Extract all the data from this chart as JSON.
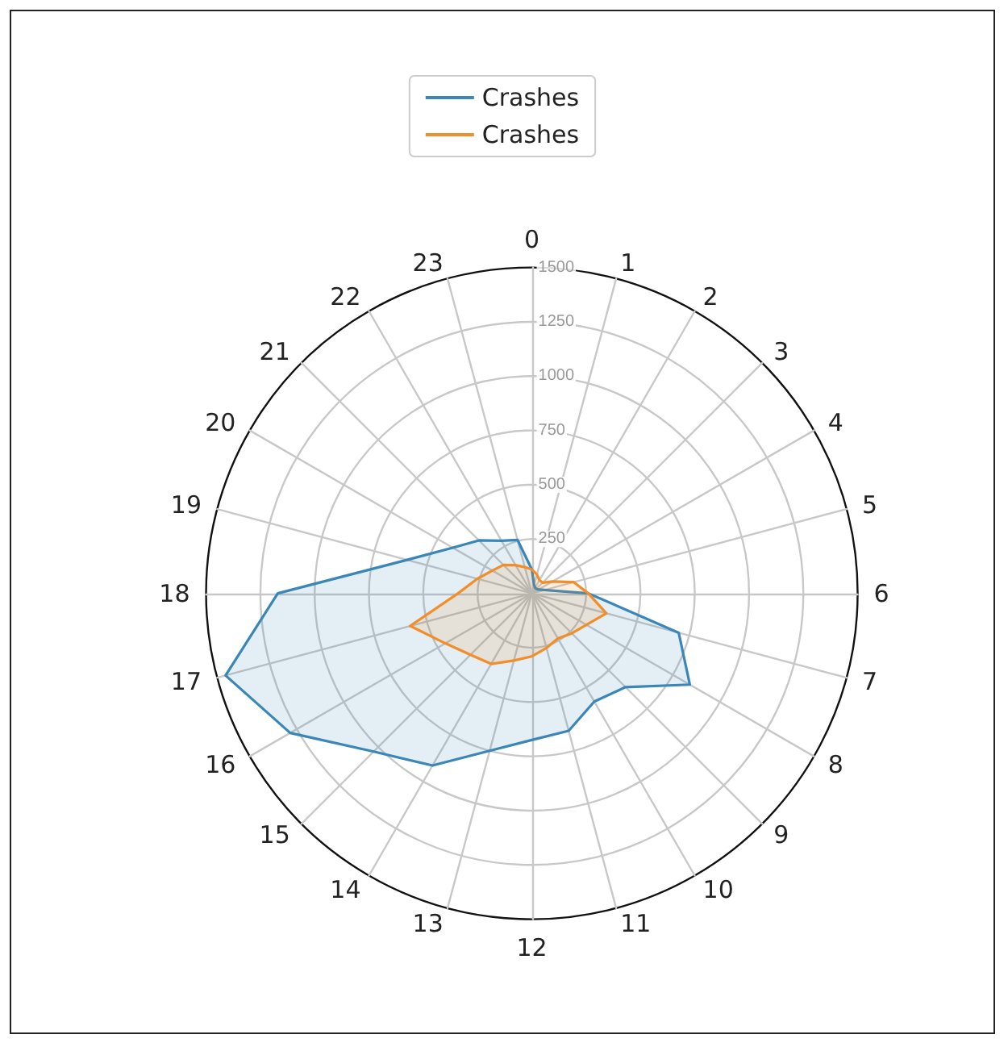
{
  "chart_data": {
    "type": "radar",
    "categories": [
      "0",
      "1",
      "2",
      "3",
      "4",
      "5",
      "6",
      "7",
      "8",
      "9",
      "10",
      "11",
      "12",
      "13",
      "14",
      "15",
      "16",
      "17",
      "18",
      "19",
      "20",
      "21",
      "22",
      "23"
    ],
    "series": [
      {
        "name": "Crashes",
        "color": "#3a87b8",
        "values": [
          110,
          40,
          30,
          30,
          35,
          60,
          260,
          700,
          840,
          610,
          575,
          655,
          675,
          750,
          915,
          1030,
          1285,
          1460,
          1170,
          595,
          420,
          345,
          280,
          255
        ]
      },
      {
        "name": "Crashes",
        "color": "#f28e2b",
        "values": [
          110,
          90,
          70,
          70,
          110,
          200,
          260,
          355,
          290,
          260,
          240,
          260,
          290,
          320,
          375,
          400,
          460,
          580,
          340,
          260,
          210,
          185,
          150,
          125
        ]
      }
    ],
    "ylim": [
      0,
      1500
    ],
    "yticks": [
      250,
      500,
      750,
      1000,
      1250,
      1500
    ],
    "grid": true,
    "legend": "top"
  }
}
